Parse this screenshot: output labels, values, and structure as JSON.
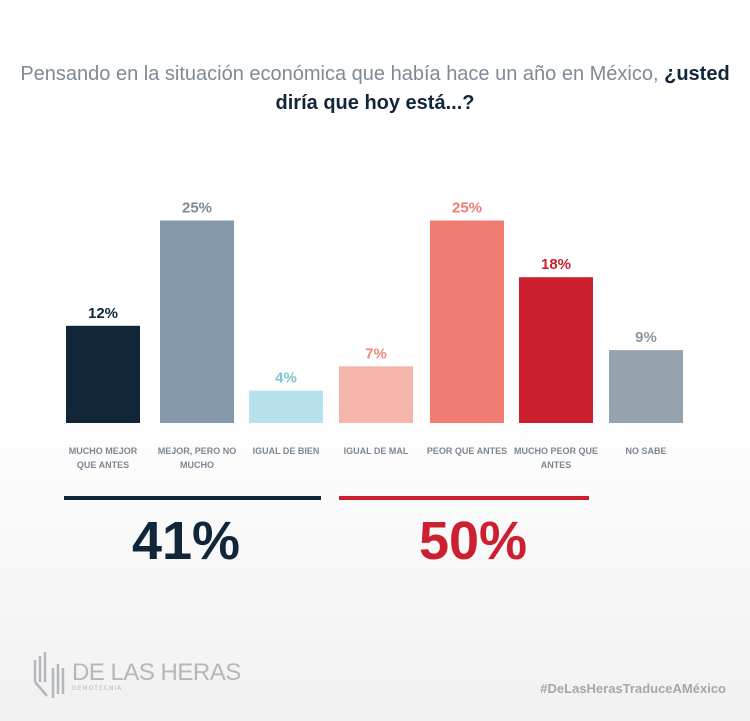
{
  "title": {
    "normal": "Pensando en la situación económica que había hace un año en México, ",
    "bold": "¿usted diría que hoy está...?"
  },
  "chart_data": {
    "type": "bar",
    "categories": [
      "MUCHO MEJOR QUE ANTES",
      "MEJOR, PERO NO MUCHO",
      "IGUAL DE BIEN",
      "IGUAL DE MAL",
      "PEOR QUE ANTES",
      "MUCHO PEOR QUE ANTES",
      "NO SABE"
    ],
    "values": [
      12,
      25,
      4,
      7,
      25,
      18,
      9
    ],
    "data_labels": [
      "12%",
      "25%",
      "4%",
      "7%",
      "25%",
      "18%",
      "9%"
    ],
    "colors": [
      "#12263a",
      "#8698ac",
      "#b9e0ee",
      "#f6b5aa",
      "#f07c72",
      "#cc1f2f",
      "#96a2ae"
    ],
    "label_colors": [
      "#12263a",
      "#7d8a98",
      "#7ac8cc",
      "#f0877d",
      "#f07c72",
      "#cc1f2f",
      "#8c97a2"
    ],
    "ylim": [
      0,
      25
    ],
    "grid": false
  },
  "summary": [
    {
      "value": "41%",
      "color": "#12263a"
    },
    {
      "value": "50%",
      "color": "#cc1f2f"
    }
  ],
  "footer": {
    "logo": "DE LAS HERAS",
    "logo_sub": "DEMOTECNIA",
    "hashtag": "#DeLasHerasTraduceAMéxico"
  }
}
